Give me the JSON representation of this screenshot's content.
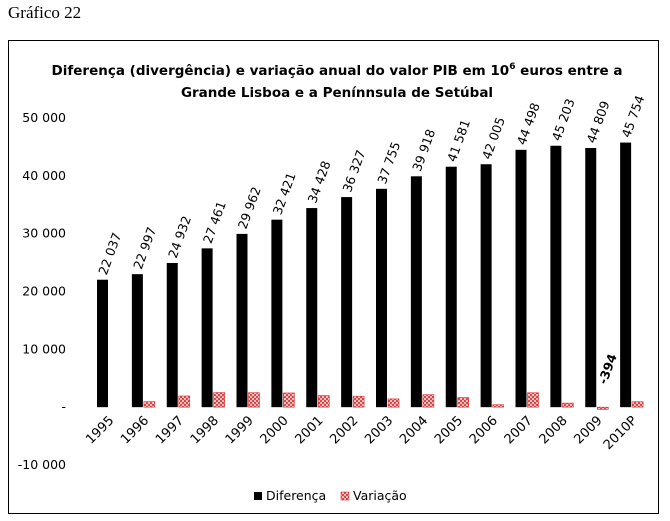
{
  "caption": "Gráfico 22",
  "chart_data": {
    "type": "bar",
    "title_line1": "Diferença (divergência) e variação anual do valor PIB em 10",
    "title_sup": "6",
    "title_line1_end": " euros entre a",
    "title_line2": "Grande Lisboa e a Penínnsula de Setúbal",
    "categories": [
      "1995",
      "1996",
      "1997",
      "1998",
      "1999",
      "2000",
      "2001",
      "2002",
      "2003",
      "2004",
      "2005",
      "2006",
      "2007",
      "2008",
      "2009",
      "2010P"
    ],
    "series": [
      {
        "name": "Diferença",
        "color": "#000000",
        "values": [
          22037,
          22997,
          24932,
          27461,
          29962,
          32421,
          34428,
          36327,
          37755,
          39918,
          41581,
          42005,
          44498,
          45203,
          44809,
          45754
        ],
        "labels": [
          "22 037",
          "22 997",
          "24 932",
          "27 461",
          "29 962",
          "32 421",
          "34 428",
          "36 327",
          "37 755",
          "39 918",
          "41 581",
          "42 005",
          "44 498",
          "45 203",
          "44 809",
          "45 754"
        ]
      },
      {
        "name": "Variação",
        "color": "#e03030",
        "values": [
          0,
          960,
          1935,
          2529,
          2501,
          2459,
          2007,
          1899,
          1428,
          2163,
          1663,
          424,
          2493,
          705,
          -394,
          945
        ],
        "labels": {
          "14": "-394"
        }
      }
    ],
    "ylim": [
      -10000,
      50000
    ],
    "yticks": [
      -10000,
      0,
      10000,
      20000,
      30000,
      40000,
      50000
    ],
    "ytick_labels": [
      "-10 000",
      "-",
      "10 000",
      "20 000",
      "30 000",
      "40 000",
      "50 000"
    ],
    "legend_position": "bottom",
    "xlabel": "",
    "ylabel": ""
  }
}
